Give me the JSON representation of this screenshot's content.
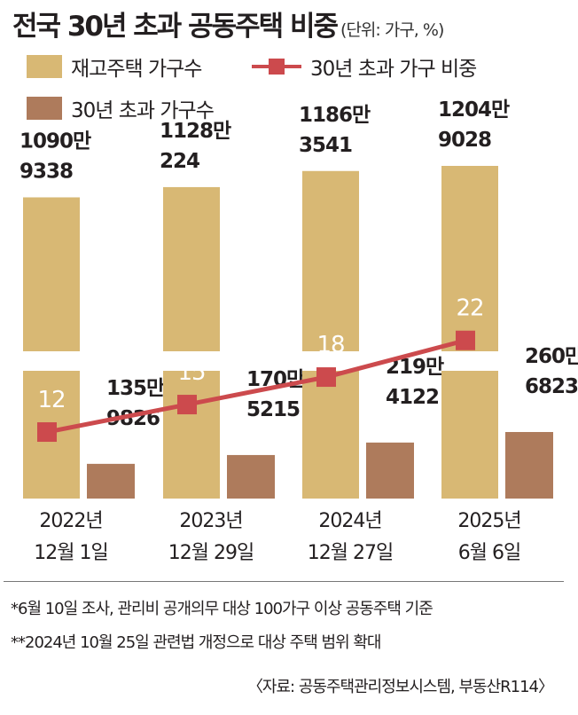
{
  "title": "전국 30년 초과 공동주택 비중",
  "unit": "(단위: 가구, %)",
  "colors": {
    "stock": "#d8b874",
    "over30": "#ae7b5c",
    "line": "#cc4a4d",
    "line_label": "#ffffff"
  },
  "chart_data": {
    "type": "bar",
    "categories": [
      "2022년\n12월 1일",
      "2023년\n12월 29일",
      "2024년\n12월 27일",
      "2025년\n6월 6일"
    ],
    "series": [
      {
        "name": "재고주택 가구수",
        "values": [
          10909338,
          11280224,
          11863541,
          12049028
        ],
        "labels": [
          "1090만\n9338",
          "1128만\n224",
          "1186만\n3541",
          "1204만\n9028"
        ]
      },
      {
        "name": "30년 초과 가구수",
        "values": [
          1359826,
          1705215,
          2194122,
          2606823
        ],
        "labels": [
          "135만\n9826",
          "170만\n5215",
          "219만\n4122",
          "260만\n6823"
        ]
      },
      {
        "name": "30년 초과 가구 비중",
        "type": "line",
        "values": [
          12,
          15,
          18,
          22
        ],
        "labels": [
          "12",
          "15",
          "18",
          "22"
        ]
      }
    ],
    "axis_break": true,
    "legend_position": "top"
  },
  "footnotes": [
    "*6월 10일 조사, 관리비 공개의무 대상 100가구 이상 공동주택 기준",
    "**2024년 10월 25일 관련법 개정으로 대상 주택 범위 확대"
  ],
  "source": "〈자료: 공동주택관리정보시스템, 부동산R114〉"
}
